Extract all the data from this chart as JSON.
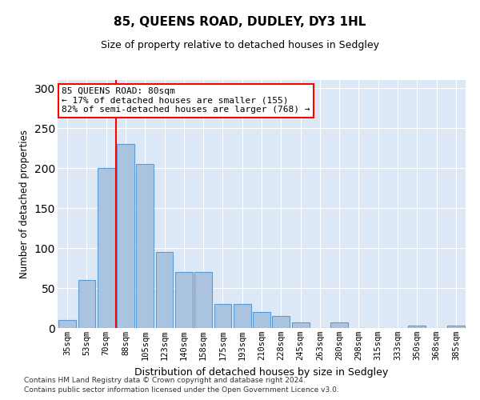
{
  "title": "85, QUEENS ROAD, DUDLEY, DY3 1HL",
  "subtitle": "Size of property relative to detached houses in Sedgley",
  "xlabel": "Distribution of detached houses by size in Sedgley",
  "ylabel": "Number of detached properties",
  "categories": [
    "35sqm",
    "53sqm",
    "70sqm",
    "88sqm",
    "105sqm",
    "123sqm",
    "140sqm",
    "158sqm",
    "175sqm",
    "193sqm",
    "210sqm",
    "228sqm",
    "245sqm",
    "263sqm",
    "280sqm",
    "298sqm",
    "315sqm",
    "333sqm",
    "350sqm",
    "368sqm",
    "385sqm"
  ],
  "values": [
    10,
    60,
    200,
    230,
    205,
    95,
    70,
    70,
    30,
    30,
    20,
    15,
    7,
    0,
    7,
    0,
    0,
    0,
    3,
    0,
    3
  ],
  "bar_color": "#aac4e0",
  "bar_edge_color": "#5b9bd5",
  "background_color": "#dce8f5",
  "property_sqm": 80,
  "vline_x": 2.5,
  "annotation_text": "85 QUEENS ROAD: 80sqm\n← 17% of detached houses are smaller (155)\n82% of semi-detached houses are larger (768) →",
  "annotation_box_color": "white",
  "annotation_box_edge": "red",
  "vline_color": "red",
  "ylim": [
    0,
    310
  ],
  "yticks": [
    0,
    50,
    100,
    150,
    200,
    250,
    300
  ],
  "footer1": "Contains HM Land Registry data © Crown copyright and database right 2024.",
  "footer2": "Contains public sector information licensed under the Open Government Licence v3.0."
}
